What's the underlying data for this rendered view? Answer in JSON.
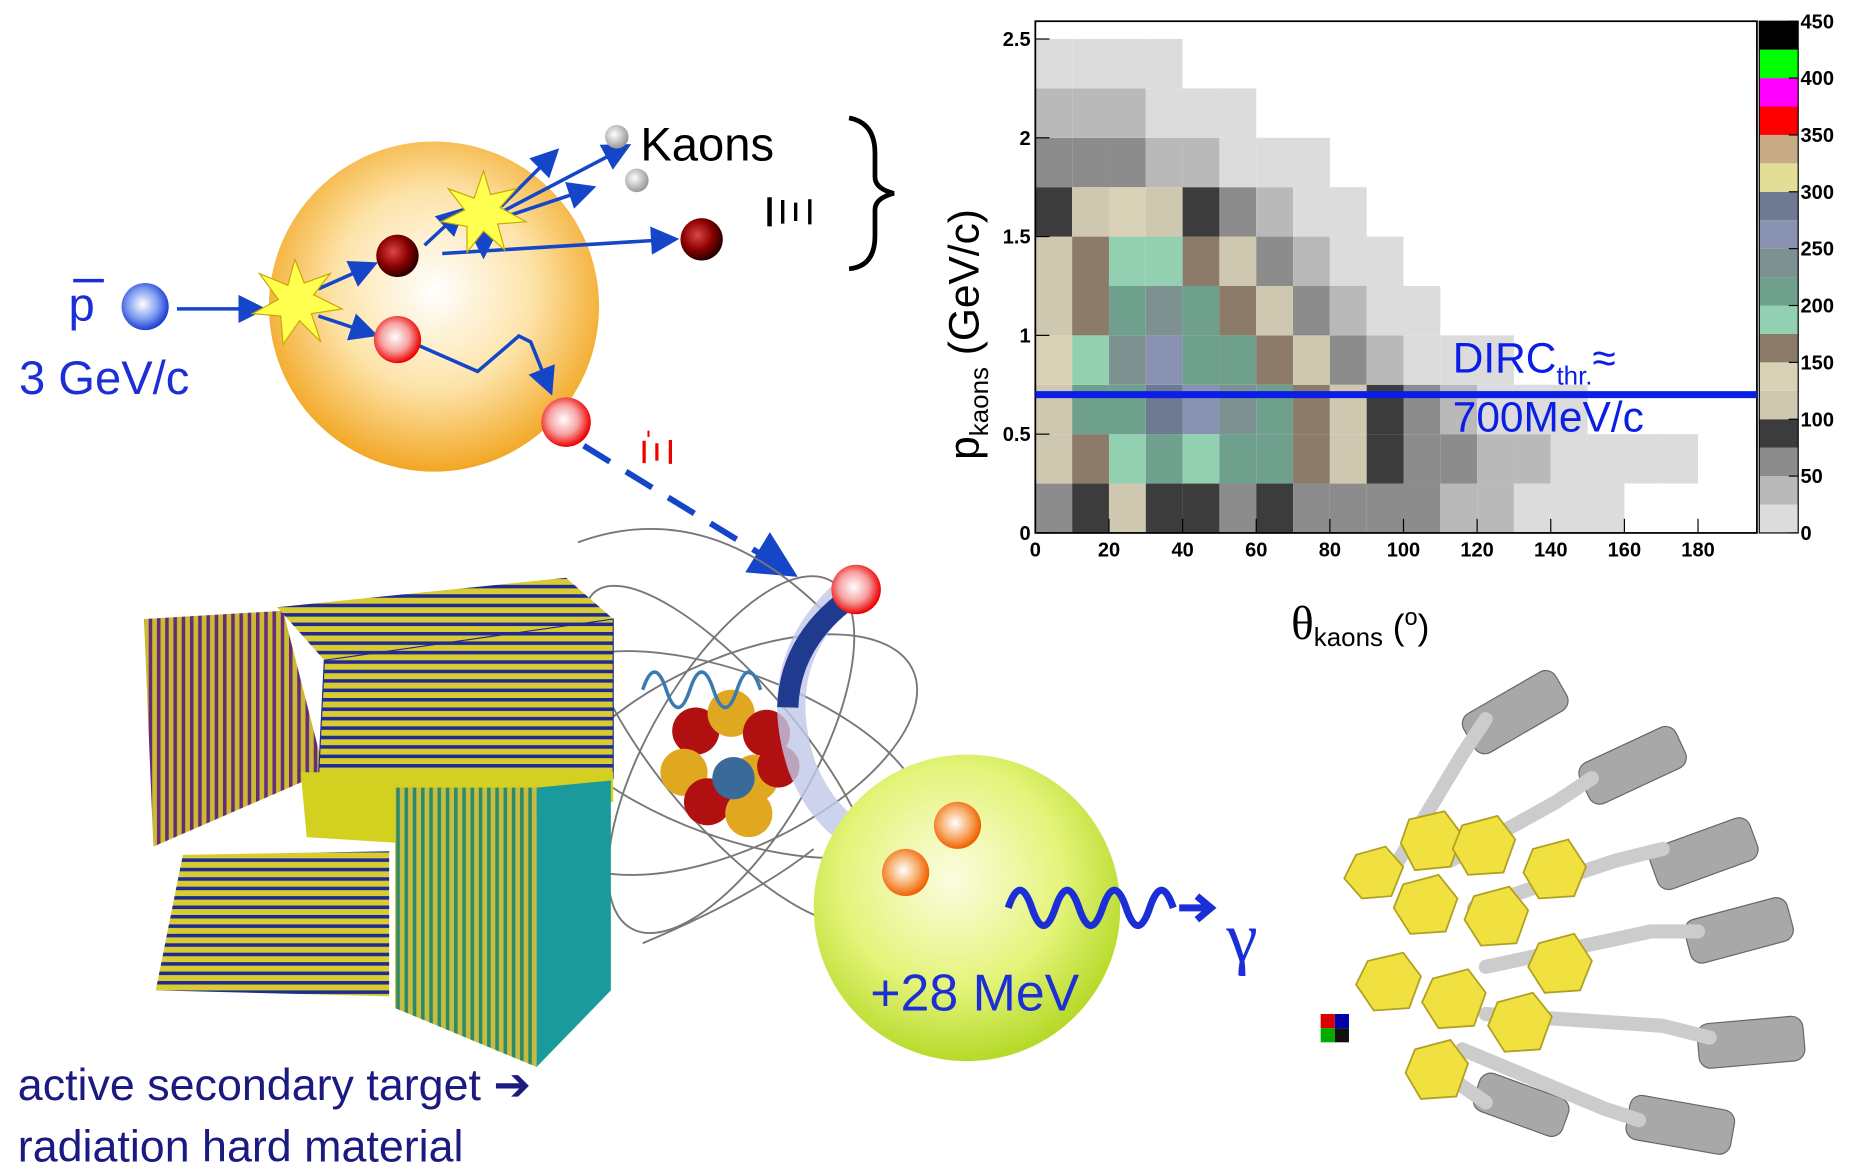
{
  "diagram": {
    "antiproton": {
      "symbol": "p",
      "momentum": "3 GeV/c"
    },
    "kaons": "Kaons",
    "xi_bar": "Ξ",
    "xi_minus": {
      "symbol": "Ξ",
      "charge": "-"
    },
    "energy": "+28 MeV",
    "gamma": "γ",
    "target_caption": [
      "active secondary target ➔",
      "radiation hard material"
    ]
  },
  "chart_data": {
    "type": "heatmap",
    "xlabel": {
      "symbol": "θ",
      "subscript": "kaons",
      "unit_open": " (",
      "unit": "o",
      "unit_close": ")"
    },
    "ylabel": {
      "symbol": "p",
      "subscript": "kaons",
      "unit": " (GeV/c)"
    },
    "annotation": {
      "main": "DIRC",
      "subscript": "thr.",
      "symbol": "≈",
      "value": "700MeV/c"
    },
    "threshold_line": 0.7,
    "threshold_color": "#0a1ee6",
    "xlim": [
      0,
      196
    ],
    "ylim": [
      0,
      2.59
    ],
    "xticks": [
      0,
      20,
      40,
      60,
      80,
      100,
      120,
      140,
      160,
      180
    ],
    "yticks": [
      0,
      0.5,
      1,
      1.5,
      2,
      2.5
    ],
    "zlim": [
      0,
      450
    ],
    "zticks": [
      0,
      50,
      100,
      150,
      200,
      250,
      300,
      350,
      400,
      450
    ],
    "colors": [
      "#dcdcdc",
      "#b9b9b9",
      "#8c8c8c",
      "#3c3c3c",
      "#cfc8b0",
      "#d9d2b6",
      "#8b7b68",
      "#93d0b2",
      "#6f9f8d",
      "#7d9290",
      "#8a92b2",
      "#6d7a92",
      "#e3dd96",
      "#c8ab86",
      "#ff0000",
      "#ff00ff",
      "#00ff00",
      "#000000"
    ],
    "x_bins": [
      0,
      10,
      20,
      30,
      40,
      50,
      60,
      70,
      80,
      90,
      100,
      110,
      120,
      130,
      140,
      150,
      160,
      170,
      180,
      190
    ],
    "y_bins": [
      0,
      0.25,
      0.5,
      0.75,
      1,
      1.25,
      1.5,
      1.75,
      2,
      2.25,
      2.5
    ],
    "z": [
      [
        60,
        80,
        100,
        90,
        80,
        70,
        90,
        70,
        60,
        60,
        50,
        40,
        30,
        20,
        20,
        10,
        0,
        0,
        0
      ],
      [
        100,
        150,
        180,
        200,
        180,
        200,
        200,
        170,
        120,
        90,
        60,
        50,
        40,
        30,
        20,
        15,
        10,
        5,
        0
      ],
      [
        120,
        200,
        220,
        280,
        250,
        240,
        200,
        160,
        120,
        80,
        50,
        30,
        20,
        10,
        5,
        0,
        0,
        0,
        0
      ],
      [
        130,
        180,
        230,
        250,
        220,
        200,
        160,
        120,
        70,
        40,
        20,
        10,
        5,
        0,
        0,
        0,
        0,
        0,
        0
      ],
      [
        120,
        170,
        220,
        230,
        200,
        160,
        110,
        60,
        30,
        20,
        10,
        0,
        0,
        0,
        0,
        0,
        0,
        0,
        0
      ],
      [
        100,
        150,
        180,
        180,
        150,
        100,
        60,
        30,
        15,
        5,
        0,
        0,
        0,
        0,
        0,
        0,
        0,
        0,
        0
      ],
      [
        80,
        110,
        130,
        110,
        80,
        50,
        25,
        10,
        5,
        0,
        0,
        0,
        0,
        0,
        0,
        0,
        0,
        0,
        0
      ],
      [
        50,
        60,
        60,
        40,
        30,
        20,
        10,
        5,
        0,
        0,
        0,
        0,
        0,
        0,
        0,
        0,
        0,
        0,
        0
      ],
      [
        30,
        30,
        25,
        20,
        10,
        5,
        0,
        0,
        0,
        0,
        0,
        0,
        0,
        0,
        0,
        0,
        0,
        0,
        0
      ],
      [
        15,
        15,
        10,
        5,
        0,
        0,
        0,
        0,
        0,
        0,
        0,
        0,
        0,
        0,
        0,
        0,
        0,
        0,
        0
      ]
    ]
  }
}
